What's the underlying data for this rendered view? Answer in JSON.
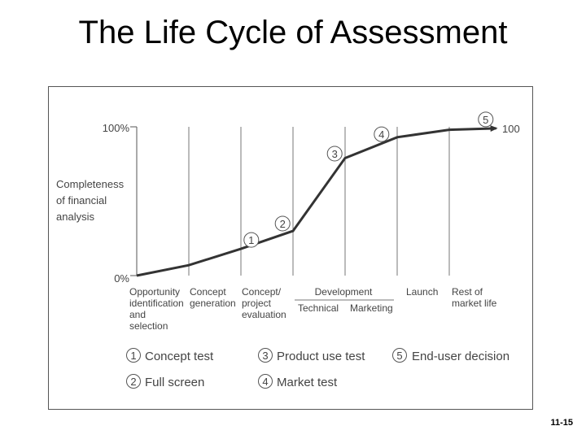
{
  "title": "The Life Cycle of Assessment",
  "slide_number": "11-15",
  "y_axis": {
    "label_lines": [
      "Completeness",
      "of financial",
      "analysis"
    ],
    "top_label": "100%",
    "bottom_label": "0%",
    "end_value_label": "100"
  },
  "stages": {
    "opportunity": [
      "Opportunity",
      "identification",
      "and",
      "selection"
    ],
    "concept_generation": [
      "Concept",
      "generation"
    ],
    "concept_evaluation": [
      "Concept/",
      "project",
      "evaluation"
    ],
    "development": "Development",
    "technical": "Technical",
    "marketing": "Marketing",
    "launch": "Launch",
    "rest_of_market_life": [
      "Rest of",
      "market life"
    ]
  },
  "markers": [
    "1",
    "2",
    "3",
    "4",
    "5"
  ],
  "legend": [
    {
      "num": "1",
      "label": "Concept test"
    },
    {
      "num": "2",
      "label": "Full screen"
    },
    {
      "num": "3",
      "label": "Product use test"
    },
    {
      "num": "4",
      "label": "Market test"
    },
    {
      "num": "5",
      "label": "End-user decision"
    }
  ],
  "chart_data": {
    "type": "line",
    "x_range": [
      0,
      7
    ],
    "y_range": [
      0,
      100
    ],
    "curve": [
      {
        "x": 0.0,
        "y": 0
      },
      {
        "x": 1.0,
        "y": 7
      },
      {
        "x": 2.0,
        "y": 18
      },
      {
        "x": 3.0,
        "y": 30
      },
      {
        "x": 4.0,
        "y": 79
      },
      {
        "x": 5.0,
        "y": 93
      },
      {
        "x": 6.0,
        "y": 98
      },
      {
        "x": 6.9,
        "y": 99
      }
    ],
    "markers": [
      {
        "num": "1",
        "x": 2.2,
        "y": 24
      },
      {
        "num": "2",
        "x": 2.8,
        "y": 35
      },
      {
        "num": "3",
        "x": 3.8,
        "y": 82
      },
      {
        "num": "4",
        "x": 4.7,
        "y": 95
      },
      {
        "num": "5",
        "x": 6.7,
        "y": 105
      }
    ]
  }
}
